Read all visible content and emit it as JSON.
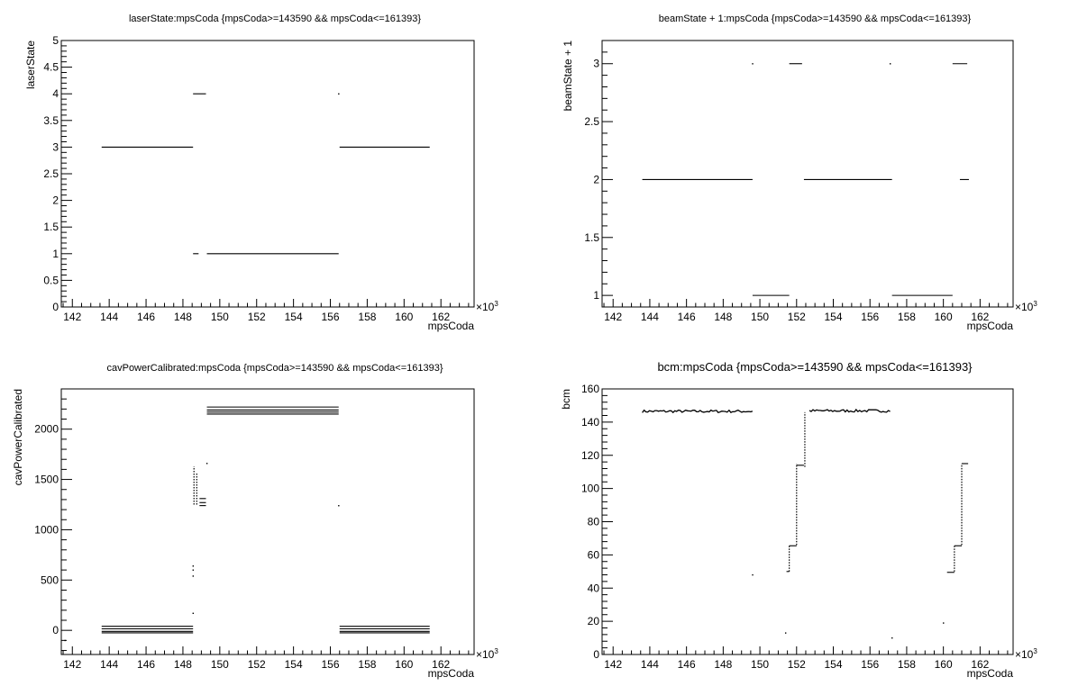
{
  "chart_data": [
    {
      "type": "scatter",
      "title": "laserState:mpsCoda {mpsCoda>=143590 && mpsCoda<=161393}",
      "xlabel": "mpsCoda",
      "ylabel": "laserState",
      "xlim": [
        141.4,
        163.8
      ],
      "ylim": [
        0,
        5
      ],
      "xticks": [
        142,
        144,
        146,
        148,
        150,
        152,
        154,
        156,
        158,
        160,
        162
      ],
      "yticks": [
        0,
        0.5,
        1,
        1.5,
        2,
        2.5,
        3,
        3.5,
        4,
        4.5,
        5
      ],
      "ytick_labels": [
        "0",
        "0.5",
        "1",
        "1.5",
        "2",
        "2.5",
        "3",
        "3.5",
        "4",
        "4.5",
        "5"
      ],
      "x_multiplier": "×10",
      "x_multiplier_exp": "3",
      "grid": false,
      "segments": [
        {
          "x": [
            143.59,
            148.55
          ],
          "y": 3
        },
        {
          "x": [
            148.55,
            149.25
          ],
          "y": 4
        },
        {
          "x": [
            148.55,
            148.85
          ],
          "y": 1
        },
        {
          "x": [
            149.3,
            156.45
          ],
          "y": 1
        },
        {
          "x": [
            156.5,
            161.39
          ],
          "y": 3
        }
      ],
      "points": [
        {
          "x": 156.45,
          "y": 4
        }
      ]
    },
    {
      "type": "scatter",
      "title": "beamState + 1:mpsCoda {mpsCoda>=143590 && mpsCoda<=161393}",
      "xlabel": "mpsCoda",
      "ylabel": "beamState + 1",
      "xlim": [
        141.4,
        163.8
      ],
      "ylim": [
        0.9,
        3.2
      ],
      "xticks": [
        142,
        144,
        146,
        148,
        150,
        152,
        154,
        156,
        158,
        160,
        162
      ],
      "yticks": [
        1,
        1.5,
        2,
        2.5,
        3
      ],
      "ytick_labels": [
        "1",
        "1.5",
        "2",
        "2.5",
        "3"
      ],
      "x_multiplier": "×10",
      "x_multiplier_exp": "3",
      "grid": false,
      "segments": [
        {
          "x": [
            143.59,
            149.6
          ],
          "y": 2
        },
        {
          "x": [
            149.6,
            151.6
          ],
          "y": 1
        },
        {
          "x": [
            151.6,
            152.3
          ],
          "y": 3
        },
        {
          "x": [
            152.4,
            157.2
          ],
          "y": 2
        },
        {
          "x": [
            157.2,
            160.5
          ],
          "y": 1
        },
        {
          "x": [
            160.5,
            161.3
          ],
          "y": 3
        },
        {
          "x": [
            160.9,
            161.39
          ],
          "y": 2
        }
      ],
      "points": [
        {
          "x": 149.6,
          "y": 3
        },
        {
          "x": 157.1,
          "y": 3
        }
      ]
    },
    {
      "type": "scatter",
      "title": "cavPowerCalibrated:mpsCoda {mpsCoda>=143590 && mpsCoda<=161393}",
      "xlabel": "mpsCoda",
      "ylabel": "cavPowerCalibrated",
      "xlim": [
        141.4,
        163.8
      ],
      "ylim": [
        -240,
        2400
      ],
      "xticks": [
        142,
        144,
        146,
        148,
        150,
        152,
        154,
        156,
        158,
        160,
        162
      ],
      "yticks": [
        0,
        500,
        1000,
        1500,
        2000
      ],
      "ytick_labels": [
        "0",
        "500",
        "1000",
        "1500",
        "2000"
      ],
      "x_multiplier": "×10",
      "x_multiplier_exp": "3",
      "grid": false,
      "segments": [
        {
          "x": [
            143.59,
            148.55
          ],
          "y": 40
        },
        {
          "x": [
            143.59,
            148.55
          ],
          "y": 15
        },
        {
          "x": [
            143.59,
            148.55
          ],
          "y": -10
        },
        {
          "x": [
            143.59,
            148.55
          ],
          "y": -25
        },
        {
          "x": [
            149.3,
            156.45
          ],
          "y": 2220
        },
        {
          "x": [
            149.3,
            156.45
          ],
          "y": 2190
        },
        {
          "x": [
            149.3,
            156.45
          ],
          "y": 2170
        },
        {
          "x": [
            149.3,
            156.45
          ],
          "y": 2150
        },
        {
          "x": [
            148.9,
            149.25
          ],
          "y": 1310
        },
        {
          "x": [
            148.9,
            149.25
          ],
          "y": 1270
        },
        {
          "x": [
            148.9,
            149.25
          ],
          "y": 1240
        },
        {
          "x": [
            156.5,
            161.39
          ],
          "y": 40
        },
        {
          "x": [
            156.5,
            161.39
          ],
          "y": 15
        },
        {
          "x": [
            156.5,
            161.39
          ],
          "y": -10
        },
        {
          "x": [
            156.5,
            161.39
          ],
          "y": -25
        }
      ],
      "vertical_runs": [
        {
          "x": 148.6,
          "y": [
            1250,
            1630
          ]
        },
        {
          "x": 148.75,
          "y": [
            1250,
            1560
          ]
        }
      ],
      "points": [
        {
          "x": 148.55,
          "y": 170
        },
        {
          "x": 148.55,
          "y": 540
        },
        {
          "x": 148.55,
          "y": 600
        },
        {
          "x": 148.55,
          "y": 640
        },
        {
          "x": 149.3,
          "y": 1660
        },
        {
          "x": 156.45,
          "y": 1240
        },
        {
          "x": 141.6,
          "y": -100
        }
      ]
    },
    {
      "type": "scatter",
      "title": "bcm:mpsCoda {mpsCoda>=143590 && mpsCoda<=161393}",
      "xlabel": "mpsCoda",
      "ylabel": "bcm",
      "xlim": [
        141.4,
        163.8
      ],
      "ylim": [
        0,
        160
      ],
      "xticks": [
        142,
        144,
        146,
        148,
        150,
        152,
        154,
        156,
        158,
        160,
        162
      ],
      "yticks": [
        0,
        20,
        40,
        60,
        80,
        100,
        120,
        140,
        160
      ],
      "ytick_labels": [
        "0",
        "20",
        "40",
        "60",
        "80",
        "100",
        "120",
        "140",
        "160"
      ],
      "x_multiplier": "×10",
      "x_multiplier_exp": "3",
      "grid": false,
      "noisy_segments": [
        {
          "x": [
            143.59,
            149.6
          ],
          "y": 146.5
        },
        {
          "x": [
            152.7,
            157.1
          ],
          "y": 146.8
        }
      ],
      "segments": [
        {
          "x": [
            151.45,
            151.6
          ],
          "y": 50
        },
        {
          "x": [
            151.6,
            152.0
          ],
          "y": 65.5
        },
        {
          "x": [
            152.0,
            152.4
          ],
          "y": 114
        },
        {
          "x": [
            160.2,
            160.6
          ],
          "y": 49.5
        },
        {
          "x": [
            160.6,
            161.0
          ],
          "y": 65.5
        },
        {
          "x": [
            161.0,
            161.35
          ],
          "y": 115
        }
      ],
      "vertical_runs": [
        {
          "x": 151.6,
          "y": [
            50,
            66
          ]
        },
        {
          "x": 152.0,
          "y": [
            66,
            115
          ]
        },
        {
          "x": 152.45,
          "y": [
            113,
            146
          ]
        },
        {
          "x": 160.6,
          "y": [
            50,
            66
          ]
        },
        {
          "x": 161.0,
          "y": [
            66,
            115
          ]
        }
      ],
      "points": [
        {
          "x": 149.6,
          "y": 48
        },
        {
          "x": 151.4,
          "y": 13
        },
        {
          "x": 157.2,
          "y": 10
        },
        {
          "x": 160.0,
          "y": 19
        }
      ]
    }
  ]
}
